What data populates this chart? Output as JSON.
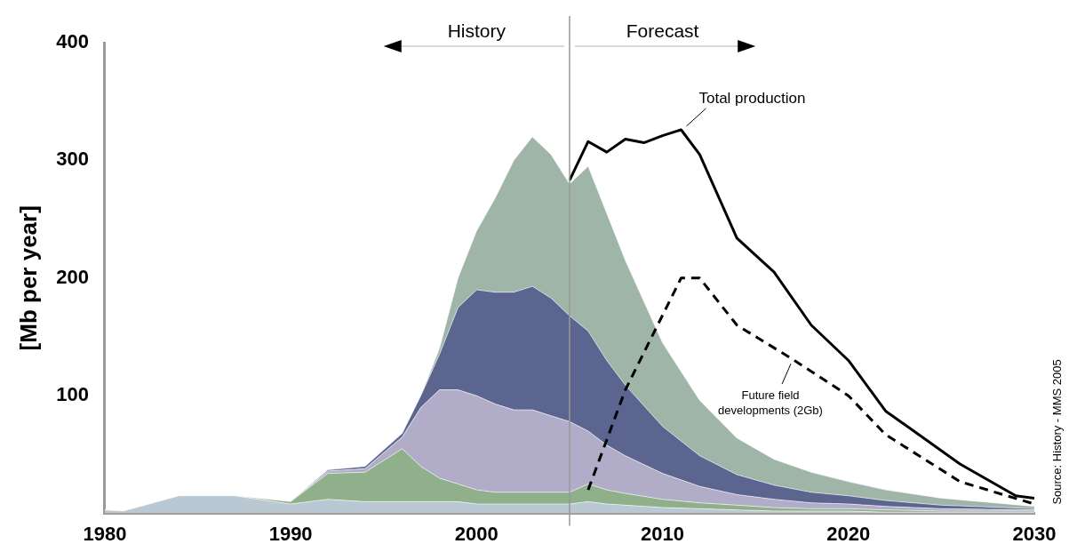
{
  "chart_data": {
    "type": "area",
    "stacked": true,
    "x": [
      1980,
      1981,
      1984,
      1987,
      1990,
      1992,
      1994,
      1996,
      1997,
      1998,
      1999,
      2000,
      2001,
      2002,
      2003,
      2004,
      2005,
      2006,
      2007,
      2008,
      2010,
      2012,
      2014,
      2016,
      2018,
      2020,
      2022,
      2025,
      2030
    ],
    "series": [
      {
        "color": "#b9c8d3",
        "values": [
          3,
          2,
          15,
          15,
          8,
          12,
          10,
          10,
          10,
          10,
          10,
          8,
          8,
          8,
          8,
          8,
          8,
          10,
          8,
          7,
          5,
          4,
          3,
          2,
          2,
          2,
          1,
          1,
          1
        ]
      },
      {
        "color": "#8fb08a",
        "values": [
          0,
          0,
          0,
          0,
          2,
          22,
          25,
          45,
          30,
          20,
          15,
          12,
          10,
          10,
          10,
          10,
          10,
          15,
          12,
          10,
          7,
          5,
          4,
          3,
          2,
          2,
          2,
          1,
          1
        ]
      },
      {
        "color": "#b1adc9",
        "values": [
          0,
          0,
          0,
          0,
          0,
          2,
          3,
          10,
          50,
          75,
          80,
          80,
          75,
          70,
          70,
          65,
          60,
          45,
          38,
          32,
          22,
          14,
          9,
          7,
          5,
          4,
          3,
          2,
          1
        ]
      },
      {
        "color": "#5c6590",
        "values": [
          0,
          0,
          0,
          0,
          0,
          1,
          2,
          3,
          10,
          30,
          70,
          90,
          95,
          100,
          105,
          100,
          90,
          85,
          72,
          60,
          40,
          26,
          17,
          12,
          9,
          7,
          5,
          3,
          1
        ]
      },
      {
        "color": "#9fb5a8",
        "values": [
          0,
          0,
          0,
          0,
          0,
          0,
          0,
          0,
          0,
          5,
          25,
          50,
          80,
          112,
          127,
          122,
          112,
          140,
          125,
          106,
          71,
          47,
          31,
          22,
          17,
          12,
          9,
          6,
          2
        ]
      },
      {
        "type": "line",
        "color": "#000000",
        "x": [
          2005,
          2006,
          2007,
          2008,
          2009,
          2010,
          2011,
          2012,
          2014,
          2016,
          2018,
          2020,
          2022,
          2026,
          2029,
          2030
        ],
        "values": [
          283,
          316,
          307,
          318,
          315,
          321,
          326,
          305,
          234,
          205,
          160,
          130,
          87,
          42,
          15,
          13
        ]
      },
      {
        "type": "line",
        "color": "#000000",
        "line_style": "dashed",
        "x": [
          2006,
          2008,
          2011,
          2012,
          2014,
          2017,
          2020,
          2022,
          2026,
          2030
        ],
        "values": [
          20,
          105,
          200,
          200,
          160,
          131,
          100,
          67,
          27,
          8
        ]
      }
    ],
    "ylabel": "[Mb per year]",
    "xlim": [
      1980,
      2030
    ],
    "xticks": [
      1980,
      1990,
      2000,
      2010,
      2020,
      2030
    ],
    "ylim": [
      0,
      400
    ],
    "yticks": [
      {
        "value": 0,
        "label": null
      },
      100,
      200,
      300,
      400
    ],
    "ref_lines": [
      {
        "axis": "x",
        "value": 2005,
        "color": "#999999"
      }
    ],
    "annotations": [
      "History",
      "Forecast",
      {
        "text": "Total production",
        "x": 2011,
        "y": 326
      },
      {
        "text": "Future field developments (2Gb)",
        "x": 2017,
        "y": 131
      },
      "Source: History - MMS 2005"
    ],
    "legend": false,
    "grid": false,
    "marker": "none"
  }
}
